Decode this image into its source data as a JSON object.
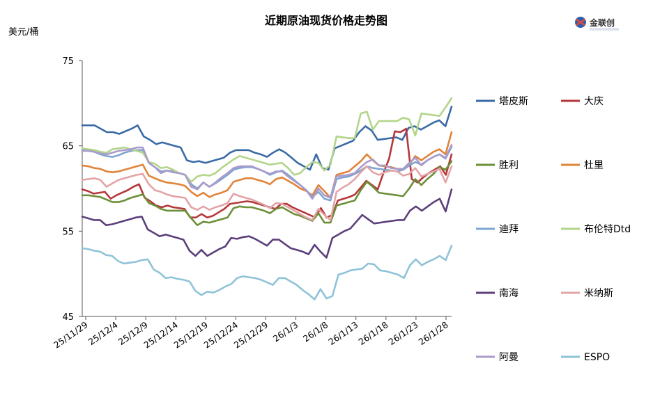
{
  "chart_data": {
    "type": "line",
    "title": "近期原油现货价格走势图",
    "unit_label": "美元/桶",
    "logo_text": "金联创",
    "ylim": [
      45,
      75
    ],
    "yticks": [
      45,
      55,
      65,
      75
    ],
    "grid": false,
    "legend_position": "right",
    "x_labels": [
      "25/11/29",
      "25/12/4",
      "25/12/9",
      "25/12/14",
      "25/12/19",
      "25/12/24",
      "25/12/29",
      "26/1/3",
      "26/1/8",
      "26/1/13",
      "26/1/18",
      "26/1/23",
      "26/1/28"
    ],
    "series": [
      {
        "name": "塔皮斯",
        "color": "#3a6aa6",
        "values": [
          67.4,
          67.4,
          67.4,
          67.0,
          66.6,
          66.6,
          66.4,
          66.7,
          67.0,
          67.4,
          66.1,
          65.7,
          65.2,
          65.4,
          65.2,
          65.0,
          64.8,
          63.3,
          63.1,
          63.2,
          63.0,
          63.2,
          63.4,
          63.6,
          64.2,
          64.5,
          64.5,
          64.5,
          64.2,
          64.0,
          63.7,
          64.2,
          64.6,
          64.2,
          63.6,
          63.0,
          62.6,
          62.2,
          64.0,
          62.4,
          62.2,
          64.7,
          65.0,
          65.3,
          65.6,
          66.6,
          67.3,
          66.8,
          65.7,
          65.8,
          65.9,
          66.0,
          65.7,
          67.1,
          67.3,
          66.9,
          67.3,
          67.7,
          68.0,
          67.3,
          69.6
        ]
      },
      {
        "name": "大庆",
        "color": "#b5373a",
        "values": [
          59.9,
          59.7,
          59.4,
          59.5,
          59.6,
          58.8,
          59.2,
          59.5,
          59.8,
          60.2,
          60.5,
          58.9,
          58.5,
          58.0,
          57.8,
          58.0,
          57.8,
          57.7,
          57.6,
          56.6,
          56.6,
          57.0,
          56.6,
          56.8,
          57.2,
          57.6,
          58.2,
          58.3,
          58.4,
          58.5,
          58.4,
          58.2,
          58.0,
          57.8,
          57.6,
          58.2,
          58.2,
          57.8,
          57.5,
          57.2,
          56.9,
          56.6,
          57.7,
          56.6,
          56.9,
          58.6,
          58.8,
          59.0,
          59.3,
          60.1,
          60.9,
          60.4,
          59.9,
          61.8,
          63.5,
          66.7,
          66.6,
          67.0,
          61.1,
          60.7,
          61.3,
          61.8,
          62.2,
          62.6,
          61.6,
          64.0
        ]
      },
      {
        "name": "胜利",
        "color": "#6c8f38",
        "values": [
          59.2,
          59.2,
          59.1,
          59.0,
          58.7,
          58.4,
          58.4,
          58.6,
          58.9,
          59.1,
          59.3,
          58.3,
          58.0,
          57.6,
          57.4,
          57.4,
          57.4,
          57.4,
          56.5,
          55.7,
          56.1,
          56.0,
          56.2,
          56.4,
          56.6,
          57.7,
          57.9,
          57.8,
          57.8,
          57.6,
          57.4,
          57.1,
          57.6,
          57.8,
          57.4,
          57.0,
          56.8,
          56.5,
          56.2,
          57.1,
          56.0,
          56.0,
          58.0,
          58.2,
          58.4,
          58.6,
          59.8,
          60.8,
          60.2,
          59.5,
          59.4,
          59.3,
          59.2,
          59.1,
          60.0,
          61.1,
          60.4,
          61.1,
          61.7,
          62.5,
          62.2,
          63.2
        ]
      },
      {
        "name": "杜里",
        "color": "#e0843a",
        "values": [
          62.7,
          62.6,
          62.4,
          62.3,
          62.0,
          61.9,
          62.0,
          62.2,
          62.4,
          62.6,
          62.8,
          61.5,
          61.2,
          60.9,
          60.7,
          60.6,
          60.5,
          60.3,
          59.6,
          59.1,
          59.5,
          59.0,
          59.3,
          59.5,
          59.8,
          60.8,
          61.0,
          61.2,
          61.2,
          61.0,
          60.8,
          60.5,
          61.1,
          61.3,
          60.9,
          60.5,
          60.0,
          59.7,
          59.2,
          60.4,
          59.7,
          58.9,
          61.6,
          61.8,
          62.0,
          62.6,
          63.2,
          64.0,
          63.3,
          62.7,
          62.6,
          62.5,
          62.3,
          62.2,
          62.8,
          63.8,
          63.3,
          63.8,
          64.3,
          64.6,
          64.0,
          66.6
        ]
      },
      {
        "name": "迪拜",
        "color": "#7ea4cf",
        "values": [
          64.6,
          64.5,
          64.3,
          64.0,
          63.8,
          63.7,
          63.9,
          64.2,
          64.4,
          64.5,
          64.5,
          63.0,
          62.5,
          62.0,
          62.1,
          62.0,
          61.8,
          61.6,
          60.5,
          60.0,
          60.7,
          60.2,
          60.6,
          61.1,
          61.6,
          62.2,
          62.4,
          62.5,
          62.5,
          62.3,
          62.0,
          61.6,
          61.9,
          62.1,
          61.6,
          61.0,
          60.4,
          59.8,
          59.0,
          59.6,
          58.8,
          58.6,
          61.1,
          61.3,
          61.4,
          61.7,
          62.1,
          62.6,
          62.4,
          62.3,
          62.2,
          62.1,
          62.0,
          62.2,
          62.7,
          63.1,
          62.8,
          63.3,
          63.7,
          64.0,
          63.5,
          64.9
        ]
      },
      {
        "name": "布伦特Dtd",
        "color": "#b3d58a",
        "values": [
          64.7,
          64.6,
          64.5,
          64.3,
          64.2,
          64.6,
          64.7,
          64.8,
          64.6,
          64.4,
          64.2,
          63.1,
          62.9,
          62.4,
          62.5,
          62.2,
          61.8,
          61.6,
          60.8,
          61.4,
          61.6,
          61.5,
          61.8,
          62.4,
          62.9,
          63.4,
          63.8,
          63.6,
          63.4,
          63.2,
          63.0,
          62.8,
          62.9,
          63.0,
          62.4,
          61.6,
          61.8,
          62.5,
          63.1,
          63.0,
          62.1,
          62.8,
          66.1,
          66.0,
          65.9,
          65.9,
          68.8,
          69.0,
          66.9,
          67.9,
          67.9,
          67.9,
          67.9,
          68.3,
          68.1,
          66.2,
          68.8,
          68.7,
          68.6,
          68.5,
          69.5,
          70.6
        ]
      },
      {
        "name": "南海",
        "color": "#5c3f7a",
        "values": [
          56.7,
          56.5,
          56.3,
          56.3,
          55.7,
          55.8,
          56.0,
          56.2,
          56.4,
          56.6,
          56.7,
          55.2,
          54.8,
          54.4,
          54.6,
          54.4,
          54.2,
          54.0,
          52.7,
          52.1,
          52.8,
          52.1,
          52.5,
          52.9,
          53.2,
          54.2,
          54.1,
          54.3,
          54.4,
          54.1,
          53.7,
          53.3,
          54.0,
          54.0,
          53.5,
          53.0,
          52.8,
          52.6,
          52.3,
          53.4,
          52.6,
          51.9,
          54.2,
          54.6,
          55.0,
          55.3,
          56.1,
          56.9,
          56.4,
          55.9,
          56.0,
          56.1,
          56.2,
          56.3,
          56.3,
          57.4,
          57.9,
          57.4,
          57.9,
          58.4,
          58.8,
          57.3,
          59.9
        ]
      },
      {
        "name": "米纳斯",
        "color": "#e3a4a6",
        "values": [
          61.0,
          61.1,
          61.2,
          61.0,
          60.2,
          60.6,
          61.0,
          61.2,
          61.4,
          61.6,
          61.7,
          60.5,
          59.8,
          59.6,
          59.3,
          59.1,
          59.0,
          58.9,
          57.8,
          57.5,
          57.9,
          57.5,
          57.8,
          58.0,
          58.3,
          59.4,
          59.1,
          58.9,
          58.7,
          58.4,
          58.1,
          57.7,
          58.3,
          58.2,
          57.8,
          57.4,
          57.0,
          56.6,
          56.3,
          57.6,
          56.9,
          56.3,
          59.6,
          60.1,
          60.5,
          61.1,
          61.9,
          62.6,
          61.9,
          61.6,
          61.9,
          62.1,
          62.0,
          61.5,
          61.7,
          62.4,
          61.4,
          61.7,
          62.0,
          62.3,
          60.7,
          62.6
        ]
      },
      {
        "name": "阿曼",
        "color": "#a99bcc",
        "values": [
          64.4,
          64.4,
          64.3,
          64.1,
          64.0,
          64.2,
          64.4,
          64.5,
          64.6,
          64.8,
          64.8,
          63.0,
          62.5,
          61.8,
          62.1,
          61.9,
          61.8,
          61.6,
          60.2,
          59.9,
          60.7,
          60.2,
          60.7,
          61.3,
          61.8,
          62.4,
          62.6,
          62.6,
          62.6,
          62.3,
          62.0,
          61.7,
          62.0,
          62.0,
          61.4,
          60.9,
          60.4,
          59.8,
          58.8,
          60.0,
          59.2,
          58.9,
          61.4,
          61.5,
          61.6,
          61.8,
          62.5,
          63.1,
          63.4,
          62.7,
          62.7,
          62.4,
          62.3,
          62.3,
          63.0,
          63.6,
          62.7,
          63.3,
          63.7,
          64.0,
          63.6,
          65.1
        ]
      },
      {
        "name": "ESPO",
        "color": "#8fc3d8",
        "values": [
          53.0,
          52.9,
          52.7,
          52.6,
          52.2,
          52.1,
          51.5,
          51.2,
          51.3,
          51.4,
          51.6,
          51.7,
          50.5,
          50.1,
          49.5,
          49.6,
          49.4,
          49.3,
          49.1,
          48.0,
          47.5,
          47.9,
          47.8,
          48.1,
          48.5,
          48.8,
          49.5,
          49.7,
          49.6,
          49.5,
          49.3,
          49.0,
          48.7,
          49.5,
          49.5,
          49.1,
          48.7,
          48.1,
          47.6,
          47.0,
          48.2,
          47.1,
          47.4,
          49.9,
          50.1,
          50.4,
          50.5,
          50.6,
          51.2,
          51.1,
          50.4,
          50.3,
          50.1,
          49.9,
          49.5,
          51.0,
          51.7,
          51.0,
          51.4,
          51.7,
          52.1,
          51.6,
          53.3
        ]
      }
    ]
  }
}
